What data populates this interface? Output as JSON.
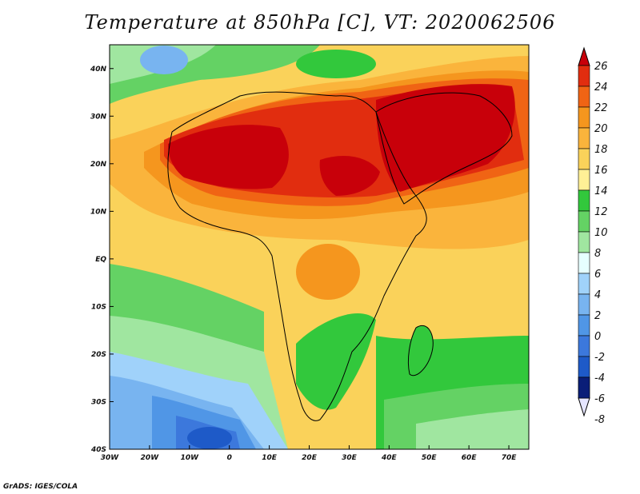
{
  "title": "Temperature at 850hPa [C], VT: 2020062506",
  "credit": "GrADS: IGES/COLA",
  "map": {
    "lon_range": [
      -30,
      75
    ],
    "lat_range": [
      -40,
      45
    ],
    "x_ticks": [
      "30W",
      "20W",
      "10W",
      "0",
      "10E",
      "20E",
      "30E",
      "40E",
      "50E",
      "60E",
      "70E"
    ],
    "y_ticks": [
      "40N",
      "30N",
      "20N",
      "10N",
      "EQ",
      "10S",
      "20S",
      "30S",
      "40S"
    ]
  },
  "colorbar": {
    "labels": [
      "26",
      "24",
      "22",
      "20",
      "18",
      "16",
      "14",
      "12",
      "10",
      "8",
      "6",
      "4",
      "2",
      "0",
      "-2",
      "-4",
      "-6",
      "-8"
    ],
    "colors": [
      "#c8000a",
      "#e12d0f",
      "#f06414",
      "#f5961e",
      "#fab43c",
      "#fad25a",
      "#fff096",
      "#32c83c",
      "#64d264",
      "#a0e6a0",
      "#e6ffff",
      "#a0d2fa",
      "#78b4f0",
      "#5096e6",
      "#3c78dc",
      "#1e5ac8",
      "#0a3cb4",
      "#0a1e78"
    ]
  }
}
